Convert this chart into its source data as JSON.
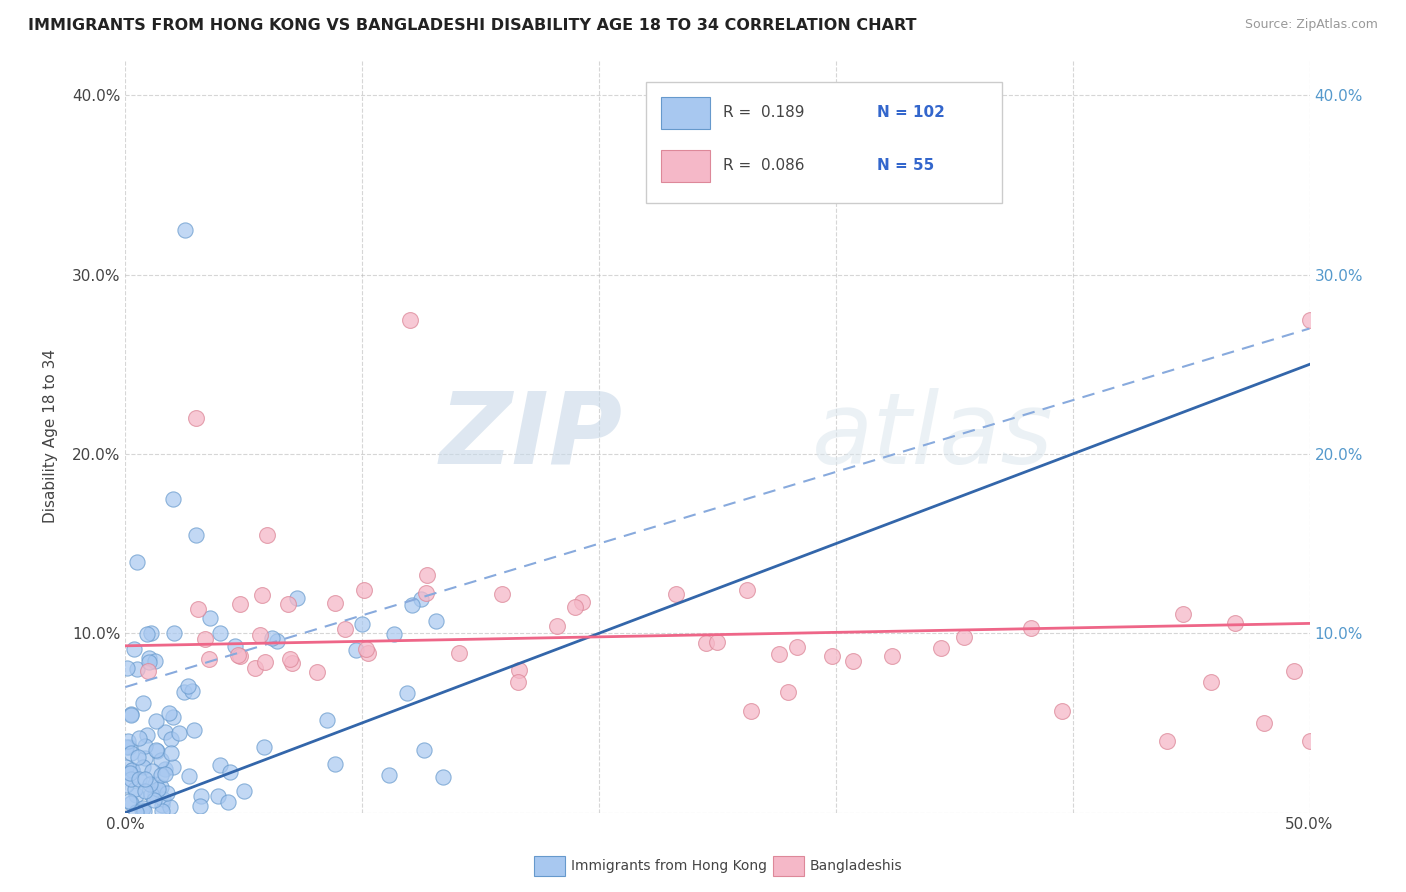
{
  "title": "IMMIGRANTS FROM HONG KONG VS BANGLADESHI DISABILITY AGE 18 TO 34 CORRELATION CHART",
  "source": "Source: ZipAtlas.com",
  "ylabel": "Disability Age 18 to 34",
  "xlim": [
    0.0,
    0.5
  ],
  "ylim": [
    0.0,
    0.42
  ],
  "legend_r1": "0.189",
  "legend_n1": "102",
  "legend_r2": "0.086",
  "legend_n2": "55",
  "series1_color": "#a8c8f0",
  "series1_edge": "#6699cc",
  "series2_color": "#f5b8c8",
  "series2_edge": "#dd8899",
  "trendline_blue_color": "#3366aa",
  "trendline_pink_color": "#ee6688",
  "trendline_dash_color": "#88aadd",
  "background_color": "#ffffff",
  "grid_color": "#bbbbbb",
  "watermark_color": "#e0e8f0",
  "ylabel_color": "#444444",
  "ytick_right_color": "#5599cc",
  "legend_r_color": "#444444",
  "legend_n_color": "#3366cc"
}
